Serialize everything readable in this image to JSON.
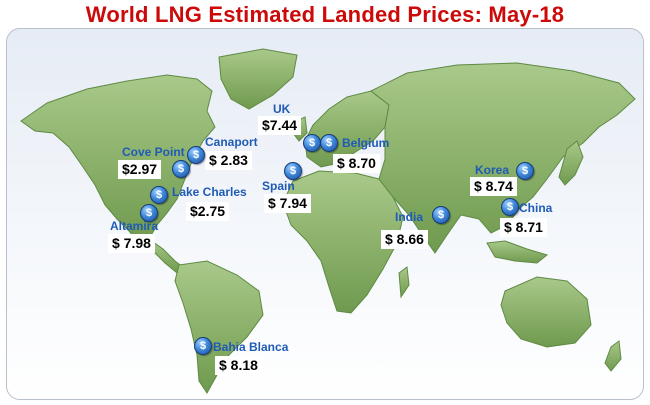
{
  "title": "World LNG Estimated Landed Prices: May-18",
  "colors": {
    "title": "#cc0a0a",
    "label": "#1f5bb5",
    "land": "#7aa05a",
    "pin": "#3f88da"
  },
  "pin_icon": "dollar-sign-icon",
  "pin_glyph": "$",
  "markers": {
    "uk": {
      "name": "UK",
      "price": "$7.44"
    },
    "belgium": {
      "name": "Belgium",
      "price": "$  8.70"
    },
    "cove_point": {
      "name": "Cove Point",
      "price": "$2.97"
    },
    "canaport": {
      "name": "Canaport",
      "price": "$  2.83"
    },
    "lake_charles": {
      "name": "Lake Charles",
      "price": "$2.75"
    },
    "altamira": {
      "name": "Altamira",
      "price": "$  7.98"
    },
    "spain": {
      "name": "Spain",
      "price": "$  7.94"
    },
    "india": {
      "name": "India",
      "price": "$  8.66"
    },
    "korea": {
      "name": "Korea",
      "price": "$  8.74"
    },
    "china": {
      "name": "China",
      "price": "$  8.71"
    },
    "bahia_blanca": {
      "name": "Bahia Blanca",
      "price": "$  8.18"
    }
  }
}
